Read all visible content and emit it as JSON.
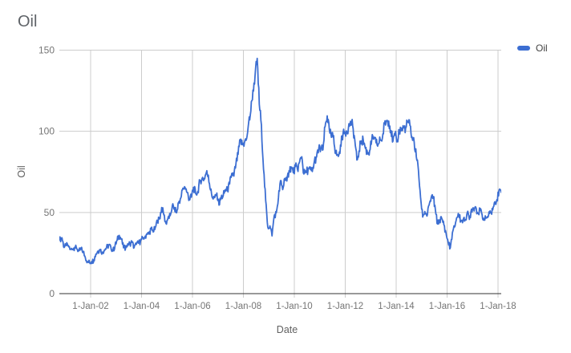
{
  "chart": {
    "title": "Oil"
  },
  "chart_data": {
    "type": "line",
    "title": "Oil",
    "xlabel": "Date",
    "ylabel": "Oil",
    "legend": {
      "position": "top-right",
      "entries": [
        "Oil"
      ]
    },
    "grid": true,
    "noise": 2.4,
    "colors": {
      "series_blue": "#3c6ed2",
      "gridline": "#cccccc",
      "axis_line": "#333333",
      "tick_text": "#757575",
      "background": "#ffffff"
    },
    "y_axis": {
      "min": 0,
      "max": 150,
      "ticks": [
        0,
        50,
        100,
        150
      ],
      "tick_labels": [
        "0",
        "50",
        "100",
        "150"
      ]
    },
    "x_axis": {
      "min_year_frac": 2000.77,
      "max_year_frac": 2018.13,
      "ticks": [
        {
          "year": 2002,
          "label": "1-Jan-02"
        },
        {
          "year": 2004,
          "label": "1-Jan-04"
        },
        {
          "year": 2006,
          "label": "1-Jan-06"
        },
        {
          "year": 2008,
          "label": "1-Jan-08"
        },
        {
          "year": 2010,
          "label": "1-Jan-10"
        },
        {
          "year": 2012,
          "label": "1-Jan-12"
        },
        {
          "year": 2014,
          "label": "1-Jan-14"
        },
        {
          "year": 2016,
          "label": "1-Jan-16"
        },
        {
          "year": 2018,
          "label": "1-Jan-18"
        }
      ]
    },
    "series": [
      {
        "name": "Oil",
        "color": "#3c6ed2",
        "points_monthly": [
          [
            2000.77,
            33.0
          ],
          [
            2000.875,
            34.4
          ],
          [
            2000.958,
            28.4
          ],
          [
            2001.042,
            29.6
          ],
          [
            2001.125,
            29.6
          ],
          [
            2001.208,
            27.2
          ],
          [
            2001.292,
            27.4
          ],
          [
            2001.375,
            28.6
          ],
          [
            2001.458,
            27.6
          ],
          [
            2001.542,
            26.4
          ],
          [
            2001.625,
            27.4
          ],
          [
            2001.708,
            25.9
          ],
          [
            2001.792,
            22.2
          ],
          [
            2001.875,
            19.7
          ],
          [
            2001.958,
            19.3
          ],
          [
            2002.042,
            19.7
          ],
          [
            2002.125,
            20.7
          ],
          [
            2002.208,
            24.4
          ],
          [
            2002.292,
            26.3
          ],
          [
            2002.375,
            27.0
          ],
          [
            2002.458,
            25.5
          ],
          [
            2002.542,
            26.9
          ],
          [
            2002.625,
            28.4
          ],
          [
            2002.708,
            29.7
          ],
          [
            2002.792,
            28.9
          ],
          [
            2002.875,
            26.3
          ],
          [
            2002.958,
            29.4
          ],
          [
            2003.042,
            33.0
          ],
          [
            2003.125,
            35.9
          ],
          [
            2003.208,
            33.5
          ],
          [
            2003.292,
            28.2
          ],
          [
            2003.375,
            28.1
          ],
          [
            2003.458,
            30.7
          ],
          [
            2003.542,
            30.8
          ],
          [
            2003.625,
            31.6
          ],
          [
            2003.708,
            28.3
          ],
          [
            2003.792,
            30.3
          ],
          [
            2003.875,
            31.1
          ],
          [
            2003.958,
            32.2
          ],
          [
            2004.042,
            34.3
          ],
          [
            2004.125,
            34.7
          ],
          [
            2004.208,
            36.8
          ],
          [
            2004.292,
            36.7
          ],
          [
            2004.375,
            40.3
          ],
          [
            2004.458,
            38.0
          ],
          [
            2004.542,
            40.8
          ],
          [
            2004.625,
            44.9
          ],
          [
            2004.708,
            46.0
          ],
          [
            2004.792,
            53.1
          ],
          [
            2004.875,
            48.5
          ],
          [
            2004.958,
            43.3
          ],
          [
            2005.042,
            46.8
          ],
          [
            2005.125,
            48.0
          ],
          [
            2005.208,
            54.3
          ],
          [
            2005.292,
            53.0
          ],
          [
            2005.375,
            49.8
          ],
          [
            2005.458,
            56.3
          ],
          [
            2005.542,
            59.0
          ],
          [
            2005.625,
            65.0
          ],
          [
            2005.708,
            65.5
          ],
          [
            2005.792,
            62.3
          ],
          [
            2005.875,
            58.3
          ],
          [
            2005.958,
            59.4
          ],
          [
            2006.042,
            65.5
          ],
          [
            2006.125,
            61.6
          ],
          [
            2006.208,
            62.9
          ],
          [
            2006.292,
            69.4
          ],
          [
            2006.375,
            70.9
          ],
          [
            2006.458,
            70.9
          ],
          [
            2006.542,
            74.4
          ],
          [
            2006.625,
            73.0
          ],
          [
            2006.708,
            63.8
          ],
          [
            2006.792,
            58.9
          ],
          [
            2006.875,
            59.1
          ],
          [
            2006.958,
            62.0
          ],
          [
            2007.042,
            54.5
          ],
          [
            2007.125,
            59.3
          ],
          [
            2007.208,
            60.4
          ],
          [
            2007.292,
            64.0
          ],
          [
            2007.375,
            63.5
          ],
          [
            2007.458,
            67.5
          ],
          [
            2007.542,
            74.1
          ],
          [
            2007.625,
            72.4
          ],
          [
            2007.708,
            79.9
          ],
          [
            2007.792,
            85.8
          ],
          [
            2007.875,
            94.6
          ],
          [
            2007.958,
            91.7
          ],
          [
            2008.042,
            93.0
          ],
          [
            2008.125,
            95.4
          ],
          [
            2008.208,
            105.5
          ],
          [
            2008.292,
            112.6
          ],
          [
            2008.375,
            125.4
          ],
          [
            2008.458,
            134.0
          ],
          [
            2008.542,
            144.9
          ],
          [
            2008.625,
            116.7
          ],
          [
            2008.708,
            103.9
          ],
          [
            2008.792,
            76.6
          ],
          [
            2008.875,
            57.3
          ],
          [
            2008.958,
            41.0
          ],
          [
            2009.042,
            41.7
          ],
          [
            2009.125,
            35.6
          ],
          [
            2009.208,
            47.9
          ],
          [
            2009.292,
            49.8
          ],
          [
            2009.375,
            59.0
          ],
          [
            2009.458,
            69.6
          ],
          [
            2009.542,
            64.1
          ],
          [
            2009.625,
            71.0
          ],
          [
            2009.708,
            69.4
          ],
          [
            2009.792,
            75.7
          ],
          [
            2009.875,
            78.0
          ],
          [
            2009.958,
            74.5
          ],
          [
            2010.042,
            78.3
          ],
          [
            2010.125,
            76.4
          ],
          [
            2010.208,
            81.2
          ],
          [
            2010.292,
            84.3
          ],
          [
            2010.375,
            73.7
          ],
          [
            2010.458,
            75.3
          ],
          [
            2010.542,
            76.3
          ],
          [
            2010.625,
            76.6
          ],
          [
            2010.708,
            75.2
          ],
          [
            2010.792,
            81.9
          ],
          [
            2010.875,
            84.3
          ],
          [
            2010.958,
            89.1
          ],
          [
            2011.042,
            89.2
          ],
          [
            2011.125,
            88.6
          ],
          [
            2011.208,
            102.9
          ],
          [
            2011.292,
            109.5
          ],
          [
            2011.375,
            100.9
          ],
          [
            2011.458,
            96.3
          ],
          [
            2011.542,
            97.3
          ],
          [
            2011.625,
            86.3
          ],
          [
            2011.708,
            85.5
          ],
          [
            2011.792,
            86.4
          ],
          [
            2011.875,
            97.2
          ],
          [
            2011.958,
            98.6
          ],
          [
            2012.042,
            100.3
          ],
          [
            2012.125,
            102.2
          ],
          [
            2012.208,
            106.2
          ],
          [
            2012.292,
            103.3
          ],
          [
            2012.375,
            94.7
          ],
          [
            2012.458,
            82.3
          ],
          [
            2012.542,
            87.9
          ],
          [
            2012.625,
            94.1
          ],
          [
            2012.708,
            94.5
          ],
          [
            2012.792,
            89.5
          ],
          [
            2012.875,
            86.5
          ],
          [
            2012.958,
            87.9
          ],
          [
            2013.042,
            94.8
          ],
          [
            2013.125,
            95.3
          ],
          [
            2013.208,
            92.9
          ],
          [
            2013.292,
            92.0
          ],
          [
            2013.375,
            94.5
          ],
          [
            2013.458,
            95.8
          ],
          [
            2013.542,
            104.7
          ],
          [
            2013.625,
            106.6
          ],
          [
            2013.708,
            106.3
          ],
          [
            2013.792,
            100.5
          ],
          [
            2013.875,
            93.9
          ],
          [
            2013.958,
            97.6
          ],
          [
            2014.042,
            94.6
          ],
          [
            2014.125,
            100.8
          ],
          [
            2014.208,
            100.8
          ],
          [
            2014.292,
            102.1
          ],
          [
            2014.375,
            102.2
          ],
          [
            2014.458,
            105.8
          ],
          [
            2014.542,
            103.6
          ],
          [
            2014.625,
            96.5
          ],
          [
            2014.708,
            93.2
          ],
          [
            2014.792,
            84.4
          ],
          [
            2014.875,
            75.8
          ],
          [
            2014.958,
            59.3
          ],
          [
            2015.042,
            47.2
          ],
          [
            2015.125,
            50.6
          ],
          [
            2015.208,
            47.8
          ],
          [
            2015.292,
            54.5
          ],
          [
            2015.375,
            59.3
          ],
          [
            2015.458,
            59.8
          ],
          [
            2015.542,
            51.2
          ],
          [
            2015.625,
            42.9
          ],
          [
            2015.708,
            45.5
          ],
          [
            2015.792,
            46.2
          ],
          [
            2015.875,
            42.4
          ],
          [
            2015.958,
            37.2
          ],
          [
            2016.042,
            31.7
          ],
          [
            2016.125,
            28.2
          ],
          [
            2016.208,
            37.5
          ],
          [
            2016.292,
            41.0
          ],
          [
            2016.375,
            46.7
          ],
          [
            2016.458,
            48.8
          ],
          [
            2016.542,
            44.7
          ],
          [
            2016.625,
            44.7
          ],
          [
            2016.708,
            45.2
          ],
          [
            2016.792,
            49.8
          ],
          [
            2016.875,
            45.7
          ],
          [
            2016.958,
            52.0
          ],
          [
            2017.042,
            52.5
          ],
          [
            2017.125,
            53.4
          ],
          [
            2017.208,
            49.3
          ],
          [
            2017.292,
            51.1
          ],
          [
            2017.375,
            48.5
          ],
          [
            2017.458,
            45.2
          ],
          [
            2017.542,
            46.6
          ],
          [
            2017.625,
            48.0
          ],
          [
            2017.708,
            49.8
          ],
          [
            2017.792,
            51.6
          ],
          [
            2017.875,
            56.6
          ],
          [
            2017.958,
            57.9
          ],
          [
            2018.042,
            63.7
          ],
          [
            2018.13,
            62.3
          ]
        ]
      }
    ]
  }
}
